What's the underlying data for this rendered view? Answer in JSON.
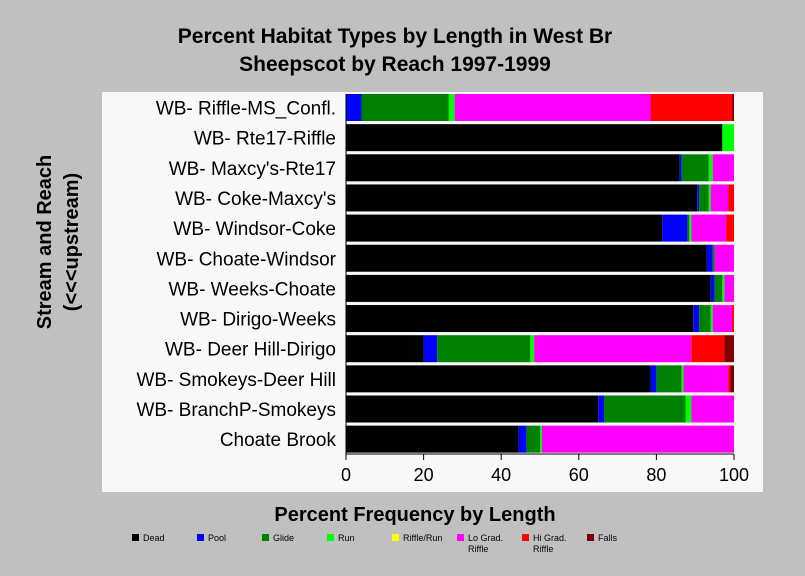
{
  "chart_data": {
    "type": "bar",
    "orientation": "horizontal",
    "stacked": true,
    "title_line1": "Percent Habitat Types by Length in West Br",
    "title_line2": "Sheepscot by Reach 1997-1999",
    "ylabel_line1": "Stream and Reach",
    "ylabel_line2": "(<<<upstream)",
    "xlabel": "Percent Frequency by Length",
    "xlim": [
      0,
      100
    ],
    "xticks": [
      "0",
      "20",
      "40",
      "60",
      "80",
      "100"
    ],
    "categories": [
      "WB- Riffle-MS_Confl.",
      "WB- Rte17-Riffle",
      "WB- Maxcy's-Rte17",
      "WB- Coke-Maxcy's",
      "WB- Windsor-Coke",
      "WB- Choate-Windsor",
      "WB- Weeks-Choate",
      "WB- Dirigo-Weeks",
      "WB- Deer Hill-Dirigo",
      "WB- Smokeys-Deer Hill",
      "WB- BranchP-Smokeys",
      "Choate Brook"
    ],
    "series": [
      {
        "name": "Dead",
        "color": "#000000",
        "values": [
          0,
          97,
          86,
          90.5,
          81.5,
          93,
          94,
          89.5,
          20,
          78.5,
          65,
          44.5
        ]
      },
      {
        "name": "Pool",
        "color": "#0000ff",
        "values": [
          4,
          0,
          0.5,
          0.5,
          6.5,
          1.5,
          1,
          1.5,
          3.5,
          1.5,
          1.5,
          2
        ]
      },
      {
        "name": "Glide",
        "color": "#008000",
        "values": [
          22.5,
          0,
          7,
          2.5,
          0.5,
          0.5,
          2,
          3,
          24,
          6.5,
          21,
          3.5
        ]
      },
      {
        "name": "Run",
        "color": "#00ff00",
        "values": [
          1.5,
          3,
          1,
          0.5,
          0.5,
          0,
          0.5,
          0.5,
          1,
          0.5,
          1.5,
          0.5
        ]
      },
      {
        "name": "Riffle/Run",
        "color": "#ffff00",
        "values": [
          0,
          0,
          0,
          0,
          0,
          0,
          0,
          0,
          0,
          0,
          0,
          0
        ]
      },
      {
        "name": "Lo Grad. Riffle",
        "color": "#ff00ff",
        "values": [
          50.5,
          0,
          5.5,
          4.5,
          9,
          5,
          2.5,
          5,
          40.5,
          11.5,
          11,
          49.5
        ]
      },
      {
        "name": "Hi Grad. Riffle",
        "color": "#ff0000",
        "values": [
          21,
          0,
          0,
          1.5,
          2,
          0,
          0,
          0.5,
          8.5,
          0.5,
          0,
          0
        ]
      },
      {
        "name": "Falls",
        "color": "#800000",
        "values": [
          0.5,
          0,
          0,
          0,
          0,
          0,
          0,
          0,
          2.5,
          1,
          0,
          0
        ]
      }
    ],
    "legend_labels": [
      "Dead",
      "Pool",
      "Glide",
      "Run",
      "Riffle/Run",
      "Lo Grad.|Riffle",
      "Hi Grad.|Riffle",
      "Falls"
    ],
    "legend_position": "bottom",
    "plot_background": "#f8f8f8",
    "grid": false
  }
}
